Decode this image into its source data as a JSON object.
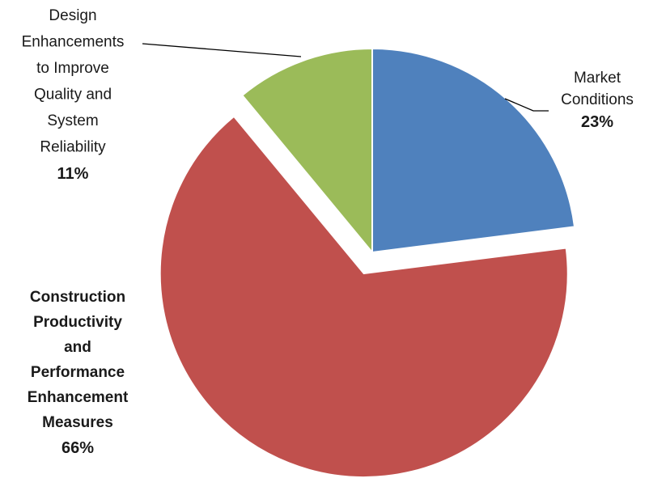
{
  "chart_data": {
    "type": "pie",
    "slices": [
      {
        "label_lines": [
          "Market",
          "Conditions"
        ],
        "percent_label": "23%",
        "value": 23,
        "color": "#4F81BD",
        "exploded": false,
        "bold_label": false
      },
      {
        "label_lines": [
          "Construction",
          "Productivity",
          "and",
          "Performance",
          "Enhancement",
          "Measures"
        ],
        "percent_label": "66%",
        "value": 66,
        "color": "#C0504D",
        "exploded": true,
        "bold_label": true
      },
      {
        "label_lines": [
          "Design",
          "Enhancements",
          "to Improve",
          "Quality and",
          "System",
          "Reliability"
        ],
        "percent_label": "11%",
        "value": 11,
        "color": "#9BBB59",
        "exploded": false,
        "bold_label": false
      }
    ],
    "start_angle_deg": 0,
    "direction": "clockwise",
    "legend": "none"
  }
}
